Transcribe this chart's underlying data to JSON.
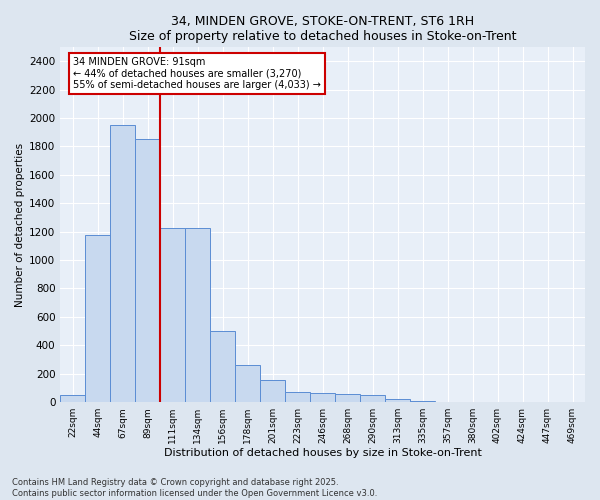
{
  "title1": "34, MINDEN GROVE, STOKE-ON-TRENT, ST6 1RH",
  "title2": "Size of property relative to detached houses in Stoke-on-Trent",
  "xlabel": "Distribution of detached houses by size in Stoke-on-Trent",
  "ylabel": "Number of detached properties",
  "categories": [
    "22sqm",
    "44sqm",
    "67sqm",
    "89sqm",
    "111sqm",
    "134sqm",
    "156sqm",
    "178sqm",
    "201sqm",
    "223sqm",
    "246sqm",
    "268sqm",
    "290sqm",
    "313sqm",
    "335sqm",
    "357sqm",
    "380sqm",
    "402sqm",
    "424sqm",
    "447sqm",
    "469sqm"
  ],
  "values": [
    50,
    1175,
    1950,
    1850,
    1225,
    1225,
    500,
    260,
    155,
    70,
    65,
    60,
    50,
    25,
    5,
    2,
    1,
    1,
    0,
    0,
    0
  ],
  "bar_color": "#c8d9ef",
  "bar_edge_color": "#5b8dd4",
  "red_line_index": 3,
  "annotation_text": "34 MINDEN GROVE: 91sqm\n← 44% of detached houses are smaller (3,270)\n55% of semi-detached houses are larger (4,033) →",
  "annotation_box_color": "#ffffff",
  "annotation_box_edge": "#cc0000",
  "vline_color": "#cc0000",
  "ylim": [
    0,
    2500
  ],
  "yticks": [
    0,
    200,
    400,
    600,
    800,
    1000,
    1200,
    1400,
    1600,
    1800,
    2000,
    2200,
    2400
  ],
  "footnote": "Contains HM Land Registry data © Crown copyright and database right 2025.\nContains public sector information licensed under the Open Government Licence v3.0.",
  "bg_color": "#dde6f0",
  "plot_bg_color": "#e8eff8",
  "grid_color": "#ffffff"
}
